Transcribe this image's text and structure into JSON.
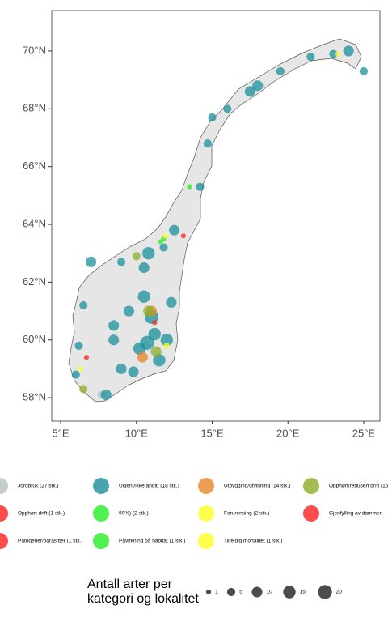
{
  "chart_data": {
    "type": "bubble-map",
    "xlim": [
      4.41,
      26.07
    ],
    "ylim": [
      57.19,
      71.4
    ],
    "xticks": [
      {
        "value": 5,
        "label": "5°E"
      },
      {
        "value": 10,
        "label": "10°E"
      },
      {
        "value": 15,
        "label": "15°E"
      },
      {
        "value": 20,
        "label": "20°E"
      },
      {
        "value": 25,
        "label": "25°E"
      }
    ],
    "yticks": [
      {
        "value": 58,
        "label": "58°N"
      },
      {
        "value": 60,
        "label": "60°N"
      },
      {
        "value": 62,
        "label": "62°N"
      },
      {
        "value": 64,
        "label": "64°N"
      },
      {
        "value": 66,
        "label": "66°N"
      },
      {
        "value": 68,
        "label": "68°N"
      },
      {
        "value": 70,
        "label": "70°N"
      }
    ],
    "categories": [
      {
        "label": "Jordbruk (27 stk.)",
        "color": "#b9c0c0",
        "points": [
          [
            7.7,
            58.1,
            5
          ]
        ]
      },
      {
        "label": "Ukjent/ikke angitt (18 stk.)",
        "color": "#1a8f9a",
        "points": [
          [
            10.7,
            59.9,
            20
          ],
          [
            10.2,
            59.7,
            15
          ],
          [
            11.0,
            60.8,
            20
          ],
          [
            10.5,
            61.5,
            15
          ],
          [
            9.5,
            61.0,
            10
          ],
          [
            8.5,
            60.5,
            10
          ],
          [
            12.0,
            60.0,
            15
          ],
          [
            11.5,
            59.3,
            15
          ],
          [
            9.0,
            59.0,
            10
          ],
          [
            8.0,
            58.1,
            10
          ],
          [
            6.0,
            58.8,
            5
          ],
          [
            6.5,
            61.2,
            5
          ],
          [
            7.0,
            62.7,
            10
          ],
          [
            10.5,
            62.5,
            10
          ],
          [
            10.8,
            63.0,
            15
          ],
          [
            12.5,
            63.8,
            10
          ],
          [
            11.8,
            63.2,
            5
          ],
          [
            14.2,
            65.3,
            5
          ],
          [
            14.7,
            66.8,
            5
          ],
          [
            15.0,
            67.7,
            5
          ],
          [
            16.0,
            68.0,
            5
          ],
          [
            17.5,
            68.6,
            10
          ],
          [
            18.0,
            68.8,
            10
          ],
          [
            19.5,
            69.3,
            5
          ],
          [
            21.5,
            69.8,
            5
          ],
          [
            23.0,
            69.9,
            5
          ],
          [
            24.0,
            70.0,
            10
          ],
          [
            25.0,
            69.3,
            5
          ],
          [
            8.5,
            60.0,
            10
          ],
          [
            9.8,
            58.9,
            10
          ],
          [
            11.2,
            60.2,
            15
          ],
          [
            12.3,
            61.3,
            10
          ],
          [
            9.0,
            62.7,
            5
          ],
          [
            6.2,
            59.8,
            5
          ]
        ]
      },
      {
        "label": "Utbygging/utvinning (14 stk.)",
        "color": "#e8862a",
        "points": [
          [
            10.4,
            59.4,
            10
          ],
          [
            11.0,
            61.0,
            10
          ]
        ]
      },
      {
        "label": "Opphørt/redusert drift (16",
        "color": "#8fab2a",
        "points": [
          [
            11.3,
            59.6,
            10
          ],
          [
            10.8,
            61.0,
            10
          ],
          [
            10.0,
            62.9,
            5
          ],
          [
            6.5,
            58.3,
            5
          ]
        ]
      },
      {
        "label": "Opphørt drift (1 stk.)",
        "color": "#ff1f1f",
        "points": [
          [
            6.7,
            59.4,
            1
          ]
        ]
      },
      {
        "label": "90%) (2 stk.)",
        "color": "#22ee22",
        "points": [
          [
            13.5,
            65.3,
            1
          ],
          [
            11.8,
            63.5,
            1
          ]
        ]
      },
      {
        "label": "Forurensing (2 stk.)",
        "color": "#ffff22",
        "points": [
          [
            11.9,
            63.6,
            1
          ],
          [
            6.3,
            59.0,
            1
          ]
        ]
      },
      {
        "label": "Gjenfylling av dammer,",
        "color": "#ff1f1f",
        "points": [
          [
            13.1,
            63.6,
            1
          ]
        ]
      },
      {
        "label": "Patogener/parasitter (1 stk.)",
        "color": "#ff1f1f",
        "points": [
          [
            11.2,
            60.6,
            1
          ]
        ]
      },
      {
        "label": "Påvirkning på habitat (1 stk.)",
        "color": "#22ee22",
        "points": [
          [
            11.6,
            63.4,
            1
          ]
        ]
      },
      {
        "label": "Tilfeldig mortalitet (1 stk.)",
        "color": "#ffff22",
        "points": [
          [
            23.3,
            69.9,
            1
          ],
          [
            12.0,
            59.8,
            2
          ]
        ]
      }
    ],
    "size_legend": {
      "title": [
        "Antall arter per",
        "kategori og lokalitet"
      ],
      "values": [
        1,
        5,
        10,
        15,
        20
      ]
    }
  }
}
